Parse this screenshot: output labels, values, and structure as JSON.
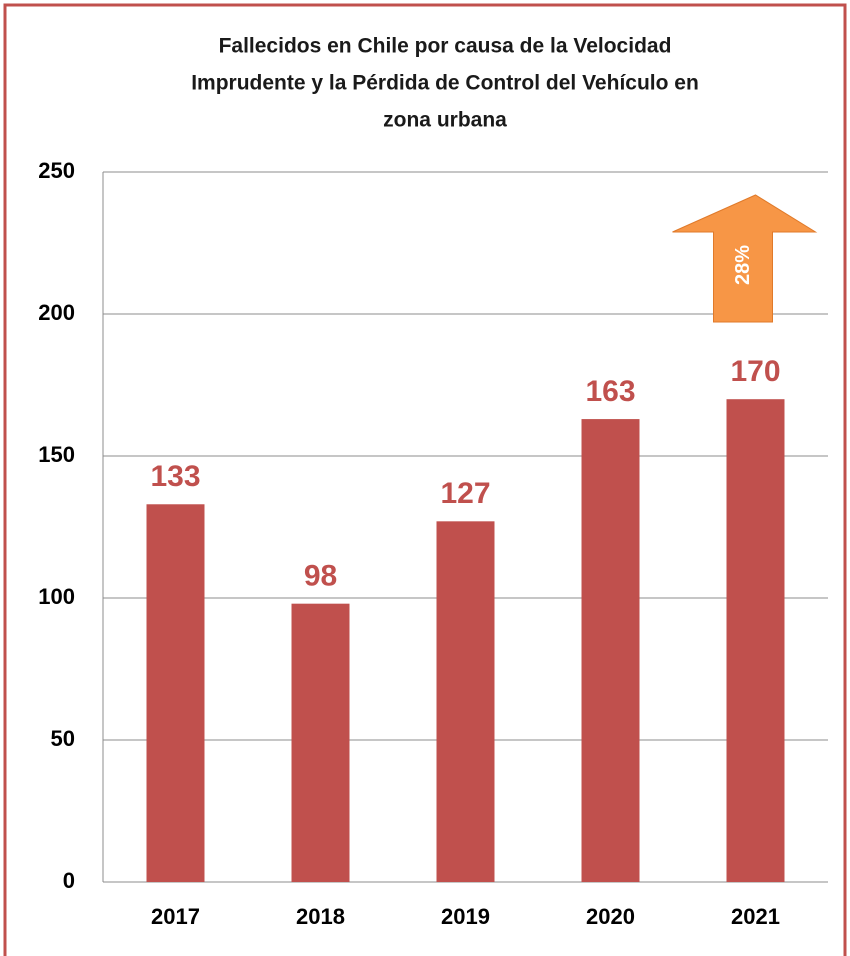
{
  "chart_data": {
    "type": "bar",
    "title_lines": [
      "Fallecidos en Chile por causa de la Velocidad",
      "Imprudente y la Pérdida de Control del Vehículo en",
      "zona urbana"
    ],
    "categories": [
      "2017",
      "2018",
      "2019",
      "2020",
      "2021"
    ],
    "values": [
      133,
      98,
      127,
      163,
      170
    ],
    "color": "#c0504d",
    "ylim": [
      0,
      250
    ],
    "yticks": [
      0,
      50,
      100,
      150,
      200,
      250
    ],
    "grid": true,
    "annotation": "28%",
    "annotation_color": "#f79646"
  }
}
